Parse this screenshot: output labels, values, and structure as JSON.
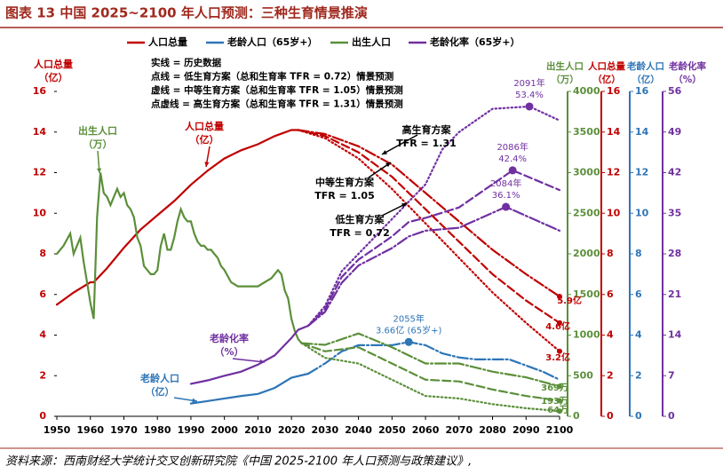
{
  "header": {
    "title": "图表 13   中国 2025~2100 年人口预测：三种生育情景推演"
  },
  "footer": {
    "source": "资料来源：西南财经大学统计交叉创新研究院《中国 2025-2100 年人口预测与政策建议》,"
  },
  "chart_data": {
    "type": "line",
    "legend": [
      {
        "name": "人口总量",
        "color": "#c00000"
      },
      {
        "name": "老龄人口（65岁+）",
        "color": "#2e75b6"
      },
      {
        "name": "出生人口",
        "color": "#5b8f3a"
      },
      {
        "name": "老龄化率（65岁+）",
        "color": "#7030a0"
      }
    ],
    "notes": [
      "实线 = 历史数据",
      "点线 = 低生育方案（总和生育率 TFR = 0.72）情景预测",
      "虚线 = 中等生育方案（总和生育率 TFR = 1.05）情景预测",
      "点虚线 = 高生育方案（总和生育率 TFR = 1.31）情景预测"
    ],
    "y_title": [
      "人口总量",
      "（亿）"
    ],
    "y_color": "#c00000",
    "xlim": [
      1950,
      2100
    ],
    "xticks": [
      1950,
      1960,
      1970,
      1980,
      1990,
      2000,
      2010,
      2020,
      2030,
      2040,
      2050,
      2060,
      2070,
      2080,
      2090,
      2100
    ],
    "ylim": [
      0,
      16
    ],
    "yticks": [
      0,
      2,
      4,
      6,
      8,
      10,
      12,
      14,
      16
    ],
    "right_axes": [
      {
        "id": "y2",
        "title": [
          "出生人口",
          "（万）"
        ],
        "color": "#5b8f3a",
        "lim": [
          0,
          4000
        ],
        "ticks": [
          0,
          500,
          1000,
          1500,
          2000,
          2500,
          3000,
          3500,
          4000
        ]
      },
      {
        "id": "y3",
        "title": [
          "人口总量",
          "（亿）"
        ],
        "color": "#c00000",
        "lim": [
          0,
          16
        ],
        "ticks": [
          0,
          2,
          4,
          6,
          8,
          10,
          12,
          14,
          16
        ]
      },
      {
        "id": "y4",
        "title": [
          "老龄人口",
          "（亿）"
        ],
        "color": "#2e75b6",
        "lim": [
          0,
          16
        ],
        "ticks": [
          0,
          2,
          4,
          6,
          8,
          10,
          12,
          14,
          16
        ]
      },
      {
        "id": "y5",
        "title": [
          "老龄化率",
          "（%）"
        ],
        "color": "#7030a0",
        "lim": [
          0,
          56
        ],
        "ticks": [
          0,
          7,
          14,
          21,
          28,
          35,
          42,
          49,
          56
        ]
      }
    ],
    "series": [
      {
        "name": "人口总量",
        "color": "#c00000",
        "axis": "y3",
        "history": {
          "x": [
            1950,
            1955,
            1960,
            1961,
            1965,
            1970,
            1975,
            1980,
            1985,
            1990,
            1995,
            2000,
            2005,
            2010,
            2015,
            2020,
            2022
          ],
          "values": [
            5.5,
            6.1,
            6.6,
            6.6,
            7.3,
            8.3,
            9.2,
            9.9,
            10.6,
            11.4,
            12.1,
            12.7,
            13.1,
            13.4,
            13.8,
            14.1,
            14.1
          ]
        },
        "projections": [
          {
            "style": "dashdot",
            "x": [
              2022,
              2030,
              2040,
              2050,
              2060,
              2070,
              2080,
              2090,
              2100
            ],
            "values": [
              14.1,
              13.9,
              13.3,
              12.4,
              11.0,
              9.6,
              8.2,
              7.0,
              5.9
            ],
            "value_labels": [
              null,
              null,
              null,
              null,
              null,
              null,
              null,
              null,
              "5.9亿"
            ]
          },
          {
            "style": "dashed",
            "x": [
              2022,
              2030,
              2040,
              2050,
              2060,
              2070,
              2080,
              2090,
              2100
            ],
            "values": [
              14.1,
              13.8,
              13.0,
              11.8,
              10.2,
              8.6,
              7.0,
              5.7,
              4.6
            ],
            "value_labels": [
              null,
              null,
              null,
              null,
              null,
              null,
              null,
              null,
              "4.6亿"
            ]
          },
          {
            "style": "dotted",
            "x": [
              2022,
              2030,
              2040,
              2050,
              2060,
              2070,
              2080,
              2090,
              2100
            ],
            "values": [
              14.1,
              13.7,
              12.7,
              11.2,
              9.5,
              7.8,
              6.1,
              4.6,
              3.2
            ],
            "value_labels": [
              null,
              null,
              null,
              null,
              null,
              null,
              null,
              null,
              "3.2亿"
            ]
          }
        ]
      },
      {
        "name": "老龄人口（65岁+）",
        "color": "#2e75b6",
        "axis": "y4",
        "history": {
          "x": [
            1990,
            1995,
            2000,
            2005,
            2010,
            2015,
            2020,
            2025
          ],
          "values": [
            0.63,
            0.75,
            0.88,
            1.0,
            1.1,
            1.4,
            1.9,
            2.1
          ]
        },
        "projections": [
          {
            "style": "dashdot",
            "x": [
              2025,
              2030,
              2035,
              2040,
              2045,
              2050,
              2055,
              2060,
              2065,
              2070,
              2075,
              2080,
              2085,
              2090,
              2095,
              2100
            ],
            "values": [
              2.1,
              2.6,
              3.2,
              3.5,
              3.5,
              3.5,
              3.66,
              3.5,
              3.1,
              2.9,
              2.8,
              2.8,
              2.8,
              2.5,
              2.2,
              1.8
            ]
          }
        ]
      },
      {
        "name": "出生人口",
        "color": "#5b8f3a",
        "axis": "y2",
        "history": {
          "x": [
            1950,
            1952,
            1954,
            1955,
            1957,
            1958,
            1959,
            1960,
            1961,
            1962,
            1963,
            1964,
            1965,
            1966,
            1968,
            1969,
            1970,
            1971,
            1972,
            1973,
            1974,
            1975,
            1976,
            1977,
            1978,
            1979,
            1980,
            1981,
            1982,
            1983,
            1984,
            1985,
            1986,
            1987,
            1988,
            1989,
            1990,
            1991,
            1992,
            1993,
            1994,
            1995,
            1996,
            1997,
            1998,
            1999,
            2000,
            2002,
            2004,
            2006,
            2008,
            2010,
            2012,
            2014,
            2016,
            2017,
            2018,
            2019,
            2020,
            2021,
            2022,
            2023
          ],
          "values": [
            2000,
            2100,
            2250,
            2000,
            2200,
            1900,
            1650,
            1400,
            1200,
            2450,
            3000,
            2750,
            2700,
            2600,
            2800,
            2700,
            2750,
            2600,
            2550,
            2450,
            2200,
            2100,
            1850,
            1800,
            1750,
            1750,
            1800,
            2100,
            2250,
            2050,
            2050,
            2200,
            2400,
            2550,
            2450,
            2400,
            2400,
            2250,
            2150,
            2100,
            2100,
            2050,
            2050,
            2000,
            1950,
            1850,
            1800,
            1650,
            1600,
            1600,
            1600,
            1600,
            1650,
            1700,
            1800,
            1750,
            1550,
            1450,
            1200,
            1050,
            950,
            900
          ]
        },
        "projections": [
          {
            "style": "dashdot",
            "x": [
              2023,
              2030,
              2040,
              2050,
              2060,
              2070,
              2080,
              2090,
              2100
            ],
            "values": [
              900,
              880,
              1020,
              850,
              650,
              650,
              550,
              480,
              369
            ],
            "value_labels": [
              null,
              null,
              null,
              null,
              null,
              null,
              null,
              null,
              "369万"
            ]
          },
          {
            "style": "dashed",
            "x": [
              2023,
              2030,
              2040,
              2050,
              2060,
              2070,
              2080,
              2090,
              2100
            ],
            "values": [
              900,
              800,
              850,
              650,
              450,
              430,
              330,
              250,
              193
            ],
            "value_labels": [
              null,
              null,
              null,
              null,
              null,
              null,
              null,
              null,
              "193万"
            ]
          },
          {
            "style": "dotted",
            "x": [
              2023,
              2030,
              2040,
              2050,
              2060,
              2070,
              2080,
              2090,
              2100
            ],
            "values": [
              900,
              720,
              650,
              450,
              250,
              220,
              150,
              100,
              64
            ],
            "value_labels": [
              null,
              null,
              null,
              null,
              null,
              null,
              null,
              null,
              "64万"
            ]
          }
        ]
      },
      {
        "name": "老龄化率（65岁+）",
        "color": "#7030a0",
        "axis": "y5",
        "history": {
          "x": [
            1990,
            1995,
            2000,
            2005,
            2010,
            2015,
            2020,
            2022,
            2025
          ],
          "values": [
            5.6,
            6.2,
            7.0,
            7.7,
            8.9,
            10.5,
            13.5,
            14.9,
            15.6
          ]
        },
        "projections": [
          {
            "style": "dashdot",
            "x": [
              2025,
              2030,
              2035,
              2040,
              2045,
              2050,
              2055,
              2060,
              2070,
              2084,
              2100
            ],
            "values": [
              15.6,
              18,
              23,
              26,
              27.5,
              29,
              31,
              32,
              32.5,
              36.1,
              32
            ]
          },
          {
            "style": "dashed",
            "x": [
              2025,
              2030,
              2035,
              2040,
              2045,
              2050,
              2055,
              2060,
              2070,
              2086,
              2100
            ],
            "values": [
              15.6,
              18.5,
              24,
              27,
              29,
              31,
              33.5,
              34.2,
              36,
              42.4,
              39
            ]
          },
          {
            "style": "dotted",
            "x": [
              2025,
              2030,
              2035,
              2040,
              2045,
              2050,
              2055,
              2060,
              2065,
              2070,
              2080,
              2091,
              2100
            ],
            "values": [
              15.6,
              19,
              25,
              28,
              31,
              34,
              37,
              40,
              46,
              49,
              53,
              53.4,
              51
            ]
          }
        ]
      }
    ],
    "peaks": [
      {
        "lines": [
          "2091年",
          "53.4%"
        ],
        "x": 2091,
        "y": 53.4,
        "axis": "y5",
        "color": "#7030a0"
      },
      {
        "lines": [
          "2086年",
          "42.4%"
        ],
        "x": 2086,
        "y": 42.4,
        "axis": "y5",
        "color": "#7030a0"
      },
      {
        "lines": [
          "2084年",
          "36.1%"
        ],
        "x": 2084,
        "y": 36.1,
        "axis": "y5",
        "color": "#7030a0"
      },
      {
        "lines": [
          "2055年",
          "3.66亿 (65岁+)"
        ],
        "x": 2055,
        "y": 3.66,
        "axis": "y4",
        "color": "#2e75b6"
      }
    ],
    "annotations": [
      {
        "lines": [
          "出生人口",
          "（万）"
        ],
        "color": "#5b8f3a"
      },
      {
        "lines": [
          "人口总量",
          "（亿）"
        ],
        "color": "#c00000"
      },
      {
        "lines": [
          "老龄化率",
          "（%）"
        ],
        "color": "#7030a0"
      },
      {
        "lines": [
          "老龄人口",
          "（亿）"
        ],
        "color": "#2e75b6"
      },
      {
        "lines": [
          "高生育方案",
          "TFR = 1.31"
        ],
        "color": "#000000"
      },
      {
        "lines": [
          "中等生育方案",
          "TFR = 1.05"
        ],
        "color": "#000000"
      },
      {
        "lines": [
          "低生育方案",
          "TFR = 0.72"
        ],
        "color": "#000000"
      }
    ]
  }
}
